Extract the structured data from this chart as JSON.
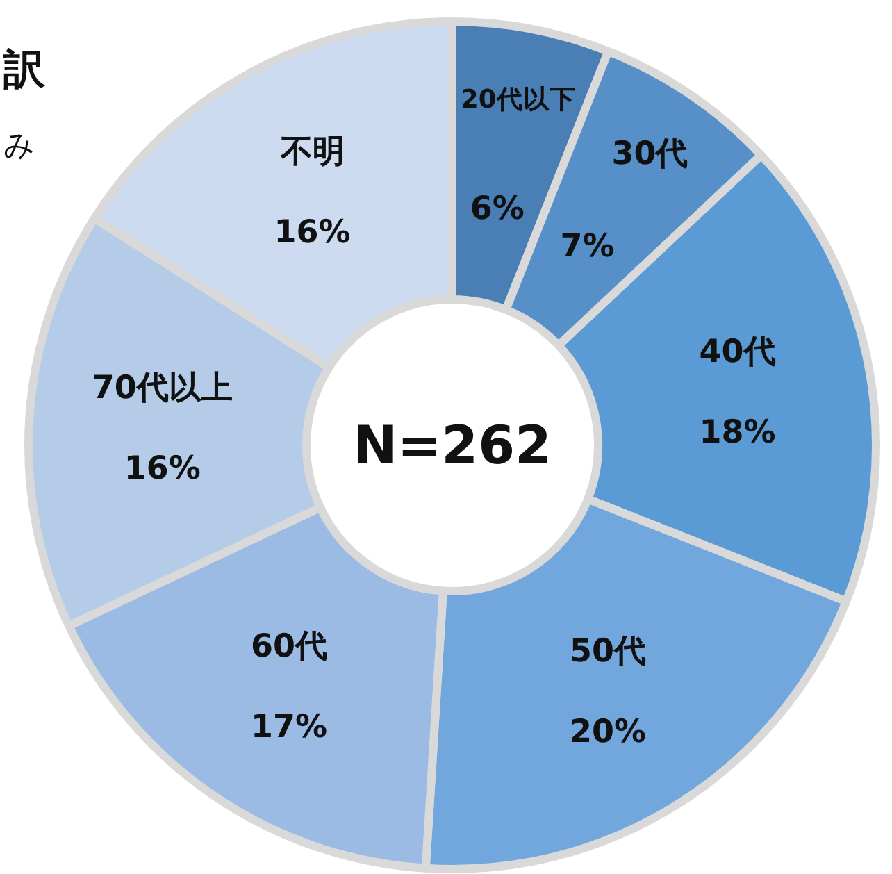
{
  "chart_data": {
    "type": "donut",
    "title": "訳",
    "subtitle": "み",
    "categories": [
      "20代以下",
      "30代",
      "40代",
      "50代",
      "60代",
      "70代以上",
      "不明"
    ],
    "values": [
      6,
      7,
      18,
      20,
      17,
      16,
      16
    ],
    "colors": [
      "#4a7fb5",
      "#5790c8",
      "#5b9bd5",
      "#72a7dd",
      "#9cbbe4",
      "#b5cce8",
      "#cddbf0"
    ],
    "value_labels": [
      "6%",
      "7%",
      "18%",
      "20%",
      "17%",
      "16%",
      "16%"
    ],
    "annotations": [
      "N=262"
    ]
  }
}
